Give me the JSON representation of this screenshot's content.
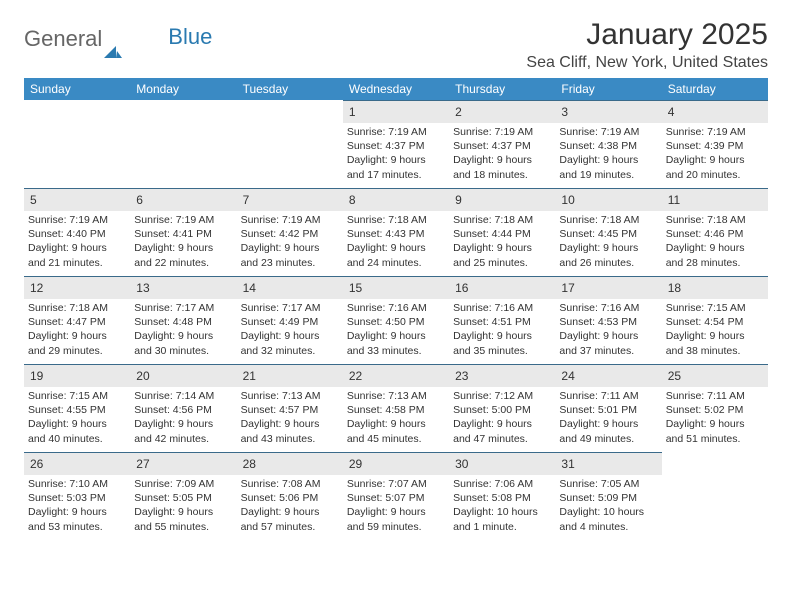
{
  "logo": {
    "text_general": "General",
    "text_blue": "Blue"
  },
  "header": {
    "month_title": "January 2025",
    "location": "Sea Cliff, New York, United States"
  },
  "colors": {
    "header_bg": "#3a8ac4",
    "header_text": "#ffffff",
    "daynum_bg": "#e9e9e9",
    "cell_border": "#3a6a8a",
    "body_text": "#333333",
    "logo_blue": "#2a7ab0"
  },
  "weekdays": [
    "Sunday",
    "Monday",
    "Tuesday",
    "Wednesday",
    "Thursday",
    "Friday",
    "Saturday"
  ],
  "first_day_index": 3,
  "days": [
    {
      "n": 1,
      "sr": "7:19 AM",
      "ss": "4:37 PM",
      "dl": "9 hours and 17 minutes."
    },
    {
      "n": 2,
      "sr": "7:19 AM",
      "ss": "4:37 PM",
      "dl": "9 hours and 18 minutes."
    },
    {
      "n": 3,
      "sr": "7:19 AM",
      "ss": "4:38 PM",
      "dl": "9 hours and 19 minutes."
    },
    {
      "n": 4,
      "sr": "7:19 AM",
      "ss": "4:39 PM",
      "dl": "9 hours and 20 minutes."
    },
    {
      "n": 5,
      "sr": "7:19 AM",
      "ss": "4:40 PM",
      "dl": "9 hours and 21 minutes."
    },
    {
      "n": 6,
      "sr": "7:19 AM",
      "ss": "4:41 PM",
      "dl": "9 hours and 22 minutes."
    },
    {
      "n": 7,
      "sr": "7:19 AM",
      "ss": "4:42 PM",
      "dl": "9 hours and 23 minutes."
    },
    {
      "n": 8,
      "sr": "7:18 AM",
      "ss": "4:43 PM",
      "dl": "9 hours and 24 minutes."
    },
    {
      "n": 9,
      "sr": "7:18 AM",
      "ss": "4:44 PM",
      "dl": "9 hours and 25 minutes."
    },
    {
      "n": 10,
      "sr": "7:18 AM",
      "ss": "4:45 PM",
      "dl": "9 hours and 26 minutes."
    },
    {
      "n": 11,
      "sr": "7:18 AM",
      "ss": "4:46 PM",
      "dl": "9 hours and 28 minutes."
    },
    {
      "n": 12,
      "sr": "7:18 AM",
      "ss": "4:47 PM",
      "dl": "9 hours and 29 minutes."
    },
    {
      "n": 13,
      "sr": "7:17 AM",
      "ss": "4:48 PM",
      "dl": "9 hours and 30 minutes."
    },
    {
      "n": 14,
      "sr": "7:17 AM",
      "ss": "4:49 PM",
      "dl": "9 hours and 32 minutes."
    },
    {
      "n": 15,
      "sr": "7:16 AM",
      "ss": "4:50 PM",
      "dl": "9 hours and 33 minutes."
    },
    {
      "n": 16,
      "sr": "7:16 AM",
      "ss": "4:51 PM",
      "dl": "9 hours and 35 minutes."
    },
    {
      "n": 17,
      "sr": "7:16 AM",
      "ss": "4:53 PM",
      "dl": "9 hours and 37 minutes."
    },
    {
      "n": 18,
      "sr": "7:15 AM",
      "ss": "4:54 PM",
      "dl": "9 hours and 38 minutes."
    },
    {
      "n": 19,
      "sr": "7:15 AM",
      "ss": "4:55 PM",
      "dl": "9 hours and 40 minutes."
    },
    {
      "n": 20,
      "sr": "7:14 AM",
      "ss": "4:56 PM",
      "dl": "9 hours and 42 minutes."
    },
    {
      "n": 21,
      "sr": "7:13 AM",
      "ss": "4:57 PM",
      "dl": "9 hours and 43 minutes."
    },
    {
      "n": 22,
      "sr": "7:13 AM",
      "ss": "4:58 PM",
      "dl": "9 hours and 45 minutes."
    },
    {
      "n": 23,
      "sr": "7:12 AM",
      "ss": "5:00 PM",
      "dl": "9 hours and 47 minutes."
    },
    {
      "n": 24,
      "sr": "7:11 AM",
      "ss": "5:01 PM",
      "dl": "9 hours and 49 minutes."
    },
    {
      "n": 25,
      "sr": "7:11 AM",
      "ss": "5:02 PM",
      "dl": "9 hours and 51 minutes."
    },
    {
      "n": 26,
      "sr": "7:10 AM",
      "ss": "5:03 PM",
      "dl": "9 hours and 53 minutes."
    },
    {
      "n": 27,
      "sr": "7:09 AM",
      "ss": "5:05 PM",
      "dl": "9 hours and 55 minutes."
    },
    {
      "n": 28,
      "sr": "7:08 AM",
      "ss": "5:06 PM",
      "dl": "9 hours and 57 minutes."
    },
    {
      "n": 29,
      "sr": "7:07 AM",
      "ss": "5:07 PM",
      "dl": "9 hours and 59 minutes."
    },
    {
      "n": 30,
      "sr": "7:06 AM",
      "ss": "5:08 PM",
      "dl": "10 hours and 1 minute."
    },
    {
      "n": 31,
      "sr": "7:05 AM",
      "ss": "5:09 PM",
      "dl": "10 hours and 4 minutes."
    }
  ],
  "labels": {
    "sunrise": "Sunrise:",
    "sunset": "Sunset:",
    "daylight": "Daylight:"
  }
}
